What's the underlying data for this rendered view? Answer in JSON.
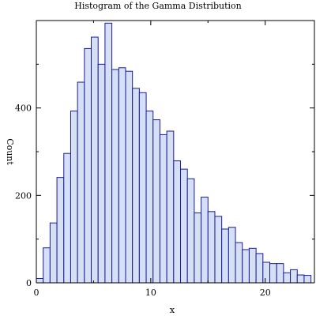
{
  "chart_data": {
    "type": "bar",
    "title": "Histogram of the Gamma Distribution",
    "xlabel": "x",
    "ylabel": "Count",
    "bin_width": 0.6,
    "x_start": 0,
    "xlim": [
      0,
      24.3
    ],
    "ylim": [
      0,
      600
    ],
    "x_ticks": [
      0,
      10,
      20
    ],
    "y_ticks": [
      0,
      200,
      400
    ],
    "counts": [
      10,
      80,
      137,
      241,
      296,
      393,
      459,
      536,
      562,
      500,
      594,
      488,
      492,
      484,
      445,
      435,
      393,
      373,
      339,
      347,
      279,
      260,
      238,
      160,
      196,
      163,
      152,
      123,
      127,
      92,
      76,
      79,
      67,
      47,
      44,
      44,
      23,
      30,
      18,
      17
    ],
    "colors": {
      "fill": "#d5e0f5",
      "stroke": "#1a1aa0"
    }
  }
}
